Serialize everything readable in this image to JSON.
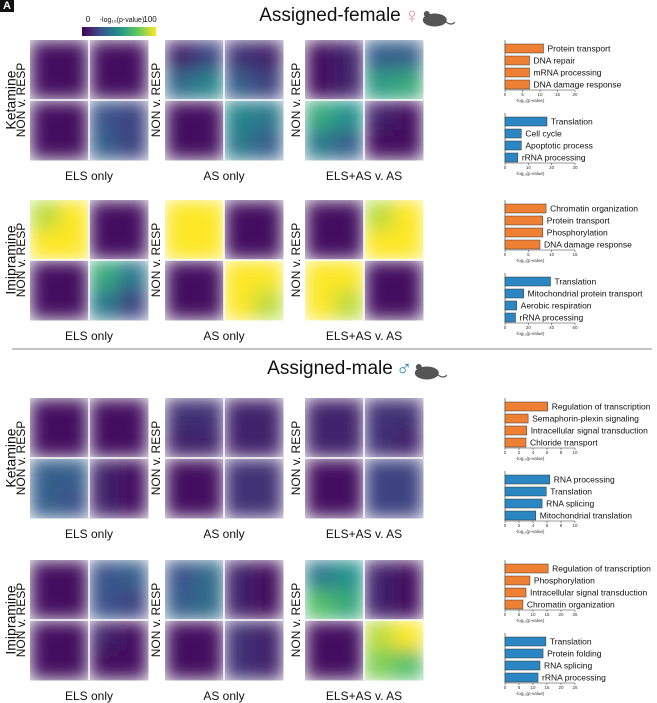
{
  "label": "A",
  "colorbar": {
    "min": 0,
    "max": 100,
    "label": "-log₁₀(p-value)",
    "colormap": [
      "#440154",
      "#3b528b",
      "#21918c",
      "#5ec962",
      "#fde725"
    ]
  },
  "sections": [
    {
      "title": "Assigned-female",
      "symbol": "♀",
      "symbol_color": "#ec8fa3",
      "rows": [
        {
          "drug": "Ketamine",
          "heatmaps": [
            {
              "type": "heatmap",
              "xlabel": "ELS only",
              "ylabel": "NON v. RESP",
              "values": [
                [
                  5,
                  5,
                  5,
                  5
                ],
                [
                  5,
                  5,
                  5,
                  5
                ],
                [
                  5,
                  5,
                  25,
                  20
                ],
                [
                  5,
                  5,
                  30,
                  20
                ]
              ]
            },
            {
              "type": "heatmap",
              "xlabel": "AS only",
              "ylabel": "NON v. RESP",
              "values": [
                [
                  10,
                  20,
                  15,
                  10
                ],
                [
                  35,
                  45,
                  30,
                  20
                ],
                [
                  5,
                  5,
                  45,
                  40
                ],
                [
                  5,
                  5,
                  40,
                  30
                ]
              ]
            },
            {
              "type": "heatmap",
              "xlabel": "ELS+AS v. AS",
              "ylabel": "NON v. RESP",
              "values": [
                [
                  5,
                  10,
                  30,
                  30
                ],
                [
                  5,
                  10,
                  55,
                  60
                ],
                [
                  60,
                  50,
                  10,
                  5
                ],
                [
                  40,
                  30,
                  5,
                  5
                ]
              ]
            }
          ],
          "bars": [
            {
              "type": "bar",
              "color": "#ef8033",
              "categories": [
                "Protein transport",
                "DNA repair",
                "mRNA processing",
                "DNA damage response"
              ],
              "values": [
                11,
                7,
                7,
                7
              ],
              "xlim": [
                0,
                20
              ],
              "xticks": [
                0,
                5,
                10,
                15,
                20
              ],
              "xlabel": "-log₁₀(p-value)"
            },
            {
              "type": "bar",
              "color": "#2b87c3",
              "categories": [
                "Translation",
                "Cell cycle",
                "Apoptotic process",
                "rRNA processing"
              ],
              "values": [
                18,
                7,
                7,
                5.5
              ],
              "xlim": [
                0,
                30
              ],
              "xticks": [
                0,
                10,
                20,
                30
              ],
              "xlabel": "-log₁₀(p-value)"
            }
          ]
        },
        {
          "drug": "Imipramine",
          "heatmaps": [
            {
              "type": "heatmap",
              "xlabel": "ELS only",
              "ylabel": "NON v. RESP",
              "values": [
                [
                  90,
                  100,
                  5,
                  5
                ],
                [
                  100,
                  100,
                  5,
                  5
                ],
                [
                  5,
                  5,
                  60,
                  40
                ],
                [
                  5,
                  5,
                  40,
                  20
                ]
              ]
            },
            {
              "type": "heatmap",
              "xlabel": "AS only",
              "ylabel": "NON v. RESP",
              "values": [
                [
                  100,
                  100,
                  5,
                  5
                ],
                [
                  100,
                  100,
                  5,
                  5
                ],
                [
                  5,
                  5,
                  100,
                  100
                ],
                [
                  5,
                  5,
                  100,
                  90
                ]
              ]
            },
            {
              "type": "heatmap",
              "xlabel": "ELS+AS v. AS",
              "ylabel": "NON v. RESP",
              "values": [
                [
                  5,
                  5,
                  90,
                  100
                ],
                [
                  5,
                  5,
                  100,
                  100
                ],
                [
                  100,
                  100,
                  5,
                  5
                ],
                [
                  100,
                  90,
                  5,
                  5
                ]
              ]
            }
          ],
          "bars": [
            {
              "type": "bar",
              "color": "#ef8033",
              "categories": [
                "Chromatin organization",
                "Protein transport",
                "Phosphorylation",
                "DNA damage response"
              ],
              "values": [
                8.8,
                8.1,
                8.1,
                7.5
              ],
              "xlim": [
                0,
                15
              ],
              "xticks": [
                0,
                5,
                10,
                15
              ],
              "xlabel": "-log₁₀(p-value)"
            },
            {
              "type": "bar",
              "color": "#2b87c3",
              "categories": [
                "Translation",
                "Mitochondrial protein transport",
                "Aerobic respiration",
                "rRNA processing"
              ],
              "values": [
                39,
                16,
                10,
                9
              ],
              "xlim": [
                0,
                60
              ],
              "xticks": [
                0,
                20,
                40,
                60
              ],
              "xlabel": "-log₁₀(p-value)"
            }
          ]
        }
      ]
    },
    {
      "title": "Assigned-male",
      "symbol": "♂",
      "symbol_color": "#2b87c3",
      "rows": [
        {
          "drug": "Ketamine",
          "heatmaps": [
            {
              "type": "heatmap",
              "xlabel": "ELS only",
              "ylabel": "NON v. RESP",
              "values": [
                [
                  5,
                  5,
                  5,
                  5
                ],
                [
                  5,
                  5,
                  5,
                  5
                ],
                [
                  30,
                  30,
                  10,
                  5
                ],
                [
                  30,
                  25,
                  10,
                  5
                ]
              ]
            },
            {
              "type": "heatmap",
              "xlabel": "AS only",
              "ylabel": "NON v. RESP",
              "values": [
                [
                  15,
                  15,
                  10,
                  10
                ],
                [
                  10,
                  10,
                  10,
                  10
                ],
                [
                  5,
                  5,
                  15,
                  15
                ],
                [
                  5,
                  5,
                  15,
                  15
                ]
              ]
            },
            {
              "type": "heatmap",
              "xlabel": "ELS+AS v. AS",
              "ylabel": "NON v. RESP",
              "values": [
                [
                  10,
                  10,
                  15,
                  15
                ],
                [
                  10,
                  10,
                  15,
                  10
                ],
                [
                  5,
                  5,
                  20,
                  20
                ],
                [
                  5,
                  5,
                  20,
                  20
                ]
              ]
            }
          ],
          "bars": [
            {
              "type": "bar",
              "color": "#ef8033",
              "categories": [
                "Regulation of transcription",
                "Semaphorin-plexin signaling",
                "Intracellular signal transduction",
                "Chloride transport"
              ],
              "values": [
                6.1,
                3.3,
                3.1,
                3
              ],
              "xlim": [
                0,
                10
              ],
              "xticks": [
                0,
                2,
                4,
                6,
                8,
                10
              ],
              "xlabel": "-log₁₀(p-value)"
            },
            {
              "type": "bar",
              "color": "#2b87c3",
              "categories": [
                "RNA processing",
                "Translation",
                "RNA splicing",
                "Mitochondrial translation"
              ],
              "values": [
                6.4,
                5.9,
                5.3,
                4.4
              ],
              "xlim": [
                0,
                10
              ],
              "xticks": [
                0,
                2,
                4,
                6,
                8,
                10
              ],
              "xlabel": "-log₁₀(p-value)"
            }
          ]
        },
        {
          "drug": "Imipramine",
          "heatmaps": [
            {
              "type": "heatmap",
              "xlabel": "ELS only",
              "ylabel": "NON v. RESP",
              "values": [
                [
                  5,
                  5,
                  25,
                  30
                ],
                [
                  5,
                  5,
                  25,
                  20
                ],
                [
                  5,
                  5,
                  10,
                  5
                ],
                [
                  5,
                  5,
                  5,
                  5
                ]
              ]
            },
            {
              "type": "heatmap",
              "xlabel": "AS only",
              "ylabel": "NON v. RESP",
              "values": [
                [
                  25,
                  35,
                  10,
                  5
                ],
                [
                  30,
                  35,
                  10,
                  5
                ],
                [
                  5,
                  5,
                  15,
                  10
                ],
                [
                  5,
                  5,
                  15,
                  10
                ]
              ]
            },
            {
              "type": "heatmap",
              "xlabel": "ELS+AS v. AS",
              "ylabel": "NON v. RESP",
              "values": [
                [
                  40,
                  50,
                  10,
                  5
                ],
                [
                  70,
                  60,
                  10,
                  5
                ],
                [
                  5,
                  5,
                  90,
                  100
                ],
                [
                  5,
                  5,
                  80,
                  70
                ]
              ]
            }
          ],
          "bars": [
            {
              "type": "bar",
              "color": "#ef8033",
              "categories": [
                "Regulation of transcription",
                "Phosphorylation",
                "Intracellular signal transduction",
                "Chromatin organization"
              ],
              "values": [
                15.4,
                8.9,
                7.5,
                6.4
              ],
              "xlim": [
                0,
                25
              ],
              "xticks": [
                0,
                5,
                10,
                15,
                20,
                25
              ],
              "xlabel": "-log₁₀(p-value)"
            },
            {
              "type": "bar",
              "color": "#2b87c3",
              "categories": [
                "Translation",
                "Protein folding",
                "RNA splicing",
                "rRNA processing"
              ],
              "values": [
                14.6,
                13.6,
                12.5,
                11.8
              ],
              "xlim": [
                0,
                25
              ],
              "xticks": [
                0,
                5,
                10,
                15,
                20,
                25
              ],
              "xlabel": "-log₁₀(p-value)"
            }
          ]
        }
      ]
    }
  ]
}
